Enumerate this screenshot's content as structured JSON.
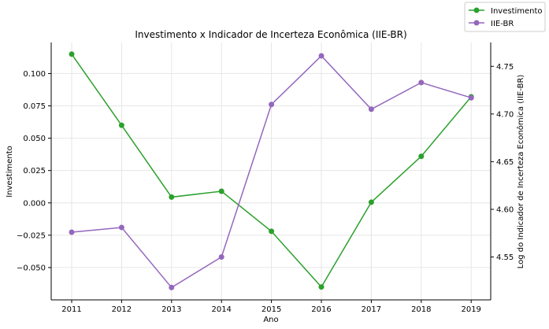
{
  "chart_data": {
    "type": "line",
    "title": "Investimento x Indicador de Incerteza Econômica (IIE-BR)",
    "xlabel": "Ano",
    "ylabel_left": "Investimento",
    "ylabel_right": "Log do Indicador de Incerteza Econômica (IIE-BR)",
    "categories": [
      "2011",
      "2012",
      "2013",
      "2014",
      "2015",
      "2016",
      "2017",
      "2018",
      "2019"
    ],
    "y_left_ticks": [
      "0.100",
      "0.075",
      "0.050",
      "0.025",
      "0.000",
      "−0.025",
      "−0.050"
    ],
    "y_left_tick_values": [
      0.1,
      0.075,
      0.05,
      0.025,
      0.0,
      -0.025,
      -0.05
    ],
    "y_left_lim": [
      -0.075,
      0.124
    ],
    "y_right_ticks": [
      "4.75",
      "4.70",
      "4.65",
      "4.60",
      "4.55"
    ],
    "y_right_tick_values": [
      4.75,
      4.7,
      4.65,
      4.6,
      4.55
    ],
    "y_right_lim": [
      4.505,
      4.775
    ],
    "grid": true,
    "legend_position": "top-right",
    "series": [
      {
        "name": "Investimento",
        "axis": "left",
        "color": "#2ca02c",
        "values": [
          0.115,
          0.06,
          0.0045,
          0.009,
          -0.022,
          -0.065,
          0.0005,
          0.036,
          0.082
        ]
      },
      {
        "name": "IIE-BR",
        "axis": "right",
        "color": "#9467bd",
        "values": [
          4.576,
          4.581,
          4.518,
          4.55,
          4.71,
          4.761,
          4.705,
          4.733,
          4.717
        ]
      }
    ]
  }
}
